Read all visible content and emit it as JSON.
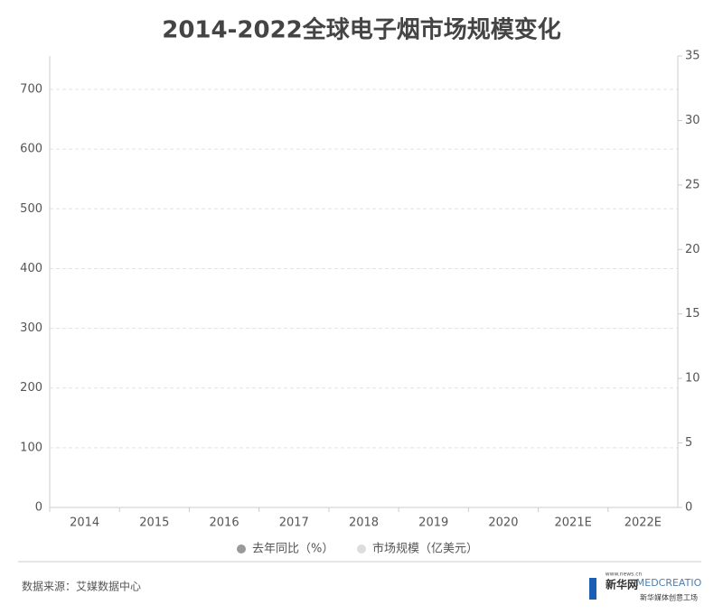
{
  "chart_data": {
    "type": "combo",
    "title": "2014-2022全球电子烟市场规模变化",
    "categories": [
      "2014",
      "2015",
      "2016",
      "2017",
      "2018",
      "2019",
      "2020",
      "2021E",
      "2022E"
    ],
    "series": [
      {
        "name": "去年同比（%）",
        "color": "#999999",
        "type": "line",
        "axis": "y2",
        "values": [
          null,
          null,
          null,
          null,
          null,
          null,
          null,
          null,
          null
        ]
      },
      {
        "name": "市场规模（亿美元）",
        "color": "#dddddd",
        "type": "bar",
        "values": [
          null,
          null,
          null,
          null,
          null,
          null,
          null,
          null,
          null
        ]
      }
    ],
    "ylim": [
      0,
      756
    ],
    "yticks": [
      0,
      100,
      200,
      300,
      400,
      500,
      600,
      700
    ],
    "y2lim": [
      0,
      35
    ],
    "y2ticks": [
      0,
      5,
      10,
      15,
      20,
      25,
      30,
      35
    ],
    "grid": true,
    "legend": "bottom"
  },
  "footer": {
    "source": "数据来源：艾媒数据中心",
    "logo1": "新华网",
    "logo1_url": "www.news.cn",
    "logo2": "MEDCREATIO",
    "logo2_sub": "新华媒体创意工场"
  }
}
